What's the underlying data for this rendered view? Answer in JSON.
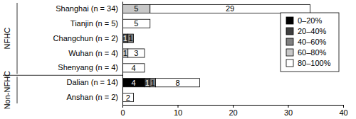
{
  "chart_data": {
    "type": "bar",
    "orientation": "horizontal",
    "stacked": true,
    "data_labels": true,
    "legend": "upper right",
    "categories": [
      "Shanghai (n = 34)",
      "Tianjin (n = 5)",
      "Changchun (n = 2)",
      "Wuhan (n = 4)",
      "Shenyang (n = 4)",
      "Dalian (n = 14)",
      "Anshan (n = 2)"
    ],
    "groups": [
      {
        "name": "NFHC",
        "count": 5
      },
      {
        "name": "Non-NFHC",
        "count": 2
      }
    ],
    "series": [
      {
        "name": "0–20%",
        "color": "#000000",
        "values": [
          null,
          null,
          null,
          null,
          null,
          4,
          null
        ]
      },
      {
        "name": "20–40%",
        "color": "#404040",
        "values": [
          null,
          null,
          1,
          null,
          null,
          1,
          null
        ]
      },
      {
        "name": "40–60%",
        "color": "#808080",
        "values": [
          null,
          null,
          1,
          null,
          null,
          1,
          null
        ]
      },
      {
        "name": "60–80%",
        "color": "#c8c8c8",
        "values": [
          5,
          null,
          null,
          1,
          null,
          null,
          null
        ]
      },
      {
        "name": "80–100%",
        "color": "#ffffff",
        "values": [
          29,
          5,
          null,
          3,
          4,
          8,
          2
        ]
      }
    ],
    "xlim": [
      0,
      40
    ],
    "xticks": [
      0,
      10,
      20,
      30,
      40
    ]
  }
}
